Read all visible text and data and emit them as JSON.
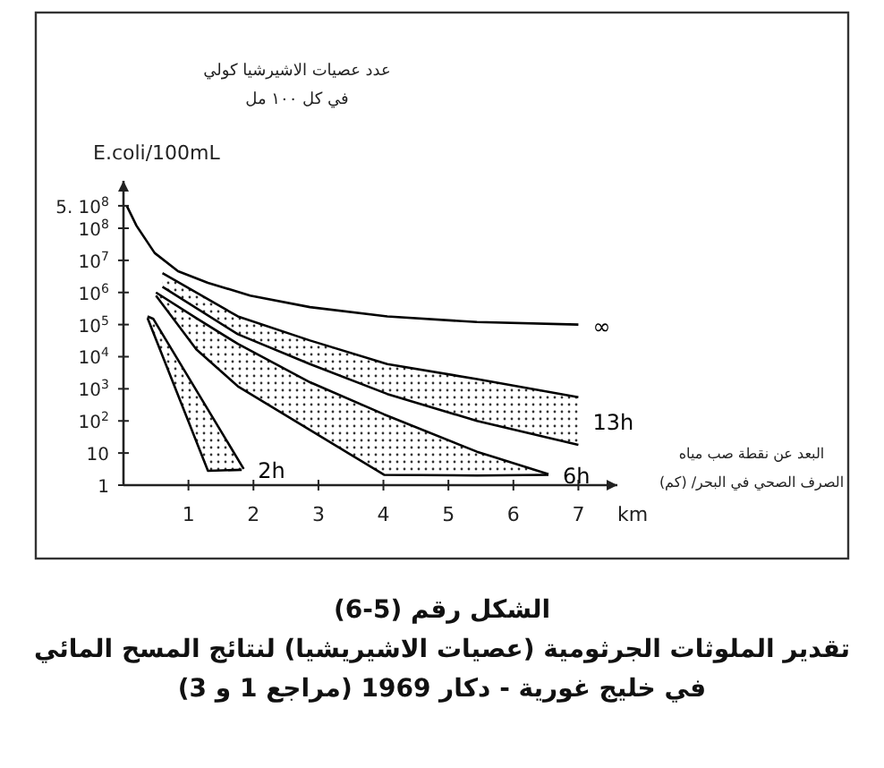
{
  "chart_data": {
    "type": "line",
    "title": "الشكل رقم (5-6)",
    "subtitle": "تقدير الملوثات الجرثومية (عصيات الاشيريشيا) لنتائج المسح المائي في خليج غورية - دكار 1969 (مراجع 1 و 3)",
    "ylabel": "E.coli/100mL",
    "xlabel": "km",
    "annotations": [
      "عدد عصيات الاشيرشيا كولي",
      "في كل ١٠٠ مل",
      "البعد عن نقطة صب مياه",
      "الصرف الصحي في البحر/ (كم)"
    ],
    "log": "y",
    "xlim": [
      0,
      7.6
    ],
    "ylim": [
      1,
      3000000000
    ],
    "xticks": [
      1,
      2,
      3,
      4,
      5,
      6,
      7
    ],
    "yticks": [
      1,
      10,
      {
        "value": 100,
        "label": "10$^{2}$"
      },
      {
        "value": 1000,
        "label": "10$^{3}$"
      },
      {
        "value": 10000,
        "label": "10$^{4}$"
      },
      {
        "value": 100000,
        "label": "10$^{5}$"
      },
      {
        "value": 1000000,
        "label": "10$^{6}$"
      },
      {
        "value": 10000000,
        "label": "10$^{7}$"
      },
      {
        "value": 100000000,
        "label": "10$^{8}$"
      },
      {
        "value": 500000000,
        "label": "5. 10$^{8}$"
      }
    ],
    "grid": false,
    "legend": false,
    "marker": "none",
    "line_style": "solid",
    "series": [
      {
        "name": "∞",
        "color": "#000000",
        "x": [
          0.05,
          0.2,
          0.48,
          0.84,
          1.3,
          1.95,
          2.87,
          4.06,
          5.44,
          7
        ],
        "values": [
          500000000,
          120000000,
          17000000,
          4600000,
          2000000,
          800000,
          350000,
          180000,
          120000,
          100000
        ]
      },
      {
        "name": "13h",
        "type": "area",
        "color": "#000000",
        "x": [
          0.6,
          1.76,
          2.87,
          4.06,
          5.44,
          7
        ],
        "values": [
          4000000,
          180000,
          32000,
          5900,
          2000,
          550
        ]
      },
      {
        "type": "line",
        "color": "#000000",
        "x": [
          0.6,
          1.76,
          2.87,
          4.06,
          5.44,
          7
        ],
        "values": [
          1500000,
          50000,
          5900,
          690,
          100,
          18
        ]
      },
      {
        "name": "6h",
        "type": "area",
        "color": "#000000",
        "x": [
          0.5,
          1.12,
          1.76,
          2.87,
          4.01,
          5.44,
          6.54
        ],
        "values": [
          1000000,
          160000,
          25000,
          1600,
          160,
          11,
          2.2
        ]
      },
      {
        "type": "line",
        "color": "#000000",
        "x": [
          0.5,
          1.12,
          1.76,
          2.87,
          4.01,
          5.44,
          6.54
        ],
        "values": [
          800000,
          17000,
          1200,
          52,
          2.1,
          2,
          2.1
        ]
      },
      {
        "name": "2h",
        "type": "area",
        "color": "#000000",
        "x": [
          0.37,
          0.46,
          1.85
        ],
        "values": [
          180000,
          150000,
          3.2
        ]
      },
      {
        "type": "line",
        "color": "#000000",
        "x": [
          0.37,
          1.3,
          1.82
        ],
        "values": [
          160000,
          2.8,
          3
        ]
      }
    ]
  }
}
